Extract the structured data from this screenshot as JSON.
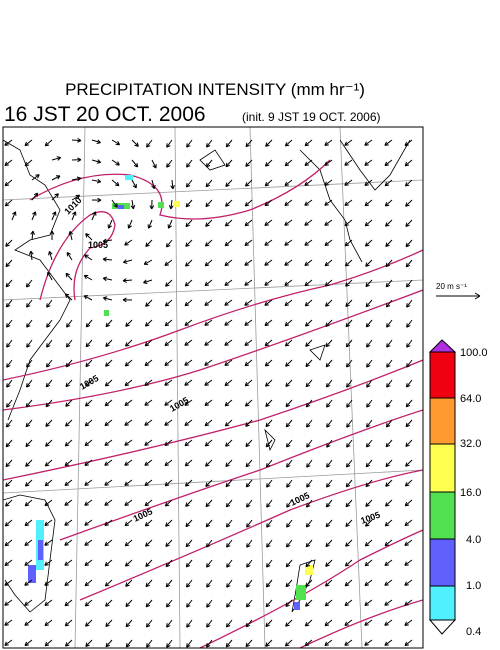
{
  "header": {
    "title": "PRECIPITATION INTENSITY (mm hr⁻¹)",
    "valid_time": "16 JST 20 OCT. 2006",
    "init_time": "(init. 9 JST 19 OCT. 2006)"
  },
  "wind_reference": "20 m s⁻¹",
  "isobar_labels": [
    "1010",
    "1005",
    "1005",
    "1005",
    "1005",
    "1005",
    "1005"
  ],
  "colorbar": {
    "labels": [
      "100.0",
      "64.0",
      "32.0",
      "16.0",
      "4.0",
      "1.0",
      "0.4"
    ]
  }
}
